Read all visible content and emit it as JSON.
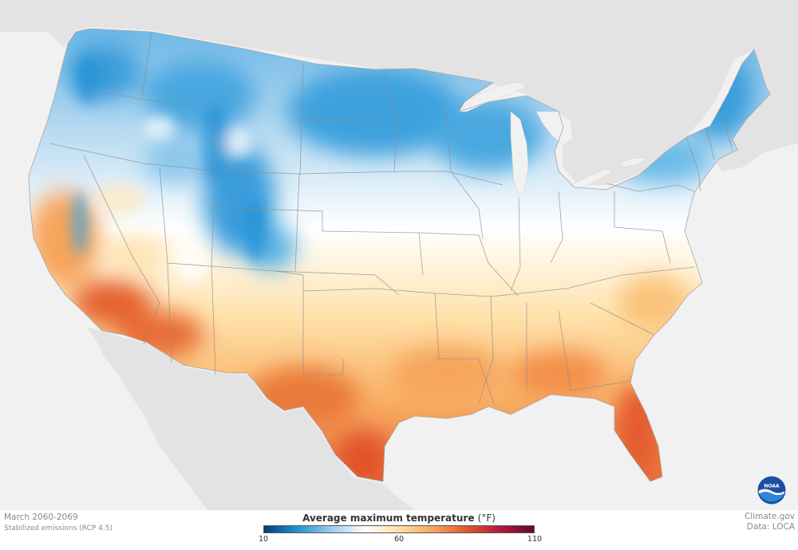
{
  "map": {
    "period": "March 2060-2069",
    "scenario": "Stabilized emissions (RCP 4.5)",
    "credit_site": "Climate.gov",
    "credit_data": "Data: LOCA",
    "logo_text": "NOAA",
    "region": "Contiguous United States"
  },
  "legend": {
    "title": "Average maximum temperature",
    "unit": "(°F)",
    "min_label": "10",
    "mid_label": "60",
    "max_label": "110",
    "range": [
      10,
      110
    ],
    "colors": {
      "cold_dark": "#0b3a73",
      "cold": "#1f93d6",
      "cool": "#9fcdec",
      "neutral": "#ffffff",
      "mild": "#ffe1a8",
      "warm": "#f7a65d",
      "hot": "#e3582e",
      "hotter": "#b5163c",
      "hottest": "#5a0d28"
    }
  },
  "colors": {
    "land_outside": "#e3e3e3",
    "water": "#f1f1f1",
    "state_border": "#8c8c8c"
  }
}
